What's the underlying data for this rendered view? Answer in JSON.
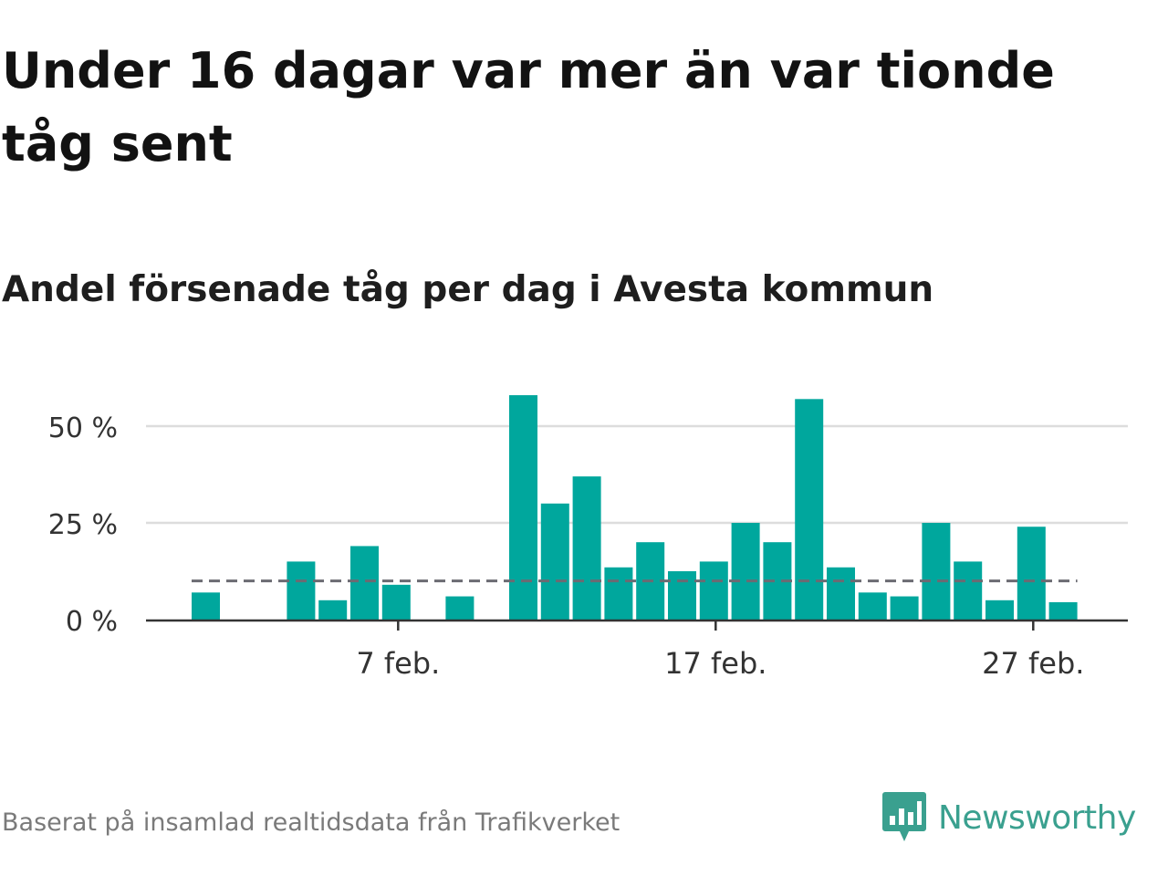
{
  "title": "Under 16 dagar var mer än var tionde tåg sent",
  "subtitle": "Andel försenade tåg per dag i Avesta kommun",
  "footer": {
    "source_note": "Baserat på insamlad realtidsdata från Trafikverket",
    "brand_name": "Newsworthy",
    "brand_icon": "newsworthy-logo-icon"
  },
  "colors": {
    "bar": "#00a79d",
    "gridline": "#dddddd",
    "axis": "#333333",
    "reference_line": "#6b6b72",
    "brand": "#3aa08f"
  },
  "chart_data": {
    "type": "bar",
    "x": [
      "1 feb.",
      "2 feb.",
      "3 feb.",
      "4 feb.",
      "5 feb.",
      "6 feb.",
      "7 feb.",
      "8 feb.",
      "9 feb.",
      "10 feb.",
      "11 feb.",
      "12 feb.",
      "13 feb.",
      "14 feb.",
      "15 feb.",
      "16 feb.",
      "17 feb.",
      "18 feb.",
      "19 feb.",
      "20 feb.",
      "21 feb.",
      "22 feb.",
      "23 feb.",
      "24 feb.",
      "25 feb.",
      "26 feb.",
      "27 feb.",
      "28 feb."
    ],
    "values": [
      7,
      0,
      0,
      15,
      5,
      19,
      9,
      0,
      6,
      0,
      58,
      30,
      37,
      13.5,
      20,
      12.5,
      15,
      25,
      20,
      57,
      13.5,
      7,
      6,
      25,
      15,
      5,
      24,
      4.5
    ],
    "reference_line": 10,
    "reference_line_style": "dashed",
    "y_ticks": [
      0,
      25,
      50
    ],
    "y_tick_labels": [
      "0 %",
      "25 %",
      "50 %"
    ],
    "x_ticks": [
      "7 feb.",
      "17 feb.",
      "27 feb."
    ],
    "x_tick_indices": [
      6,
      16,
      26
    ],
    "ylim": [
      0,
      60
    ],
    "grid": true,
    "xlabel": "",
    "ylabel": ""
  }
}
